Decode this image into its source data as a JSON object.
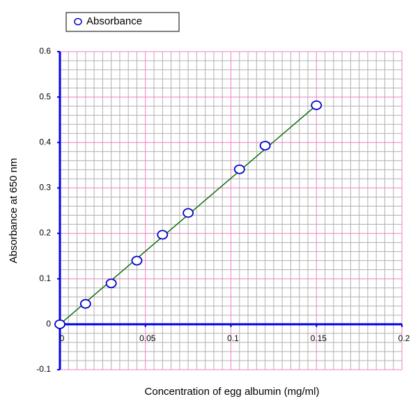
{
  "chart_data": {
    "type": "scatter",
    "x_label": "Concentration of egg albumin (mg/ml)",
    "y_label": "Absorbance at 650 nm",
    "series": [
      {
        "name": "Absorbance",
        "color": "#0000cc",
        "x": [
          0,
          0.015,
          0.03,
          0.045,
          0.06,
          0.075,
          0.105,
          0.12,
          0.15
        ],
        "values": [
          0,
          0.045,
          0.09,
          0.14,
          0.197,
          0.245,
          0.341,
          0.393,
          0.482
        ]
      }
    ],
    "trendline": {
      "color": "#107010",
      "x": [
        0,
        0.15
      ],
      "values": [
        0,
        0.482
      ]
    },
    "xlim": [
      0,
      0.2
    ],
    "xticks": [
      0,
      0.05,
      0.1,
      0.15,
      0.2
    ],
    "ylim": [
      -0.1,
      0.6
    ],
    "yticks": [
      -0.1,
      0,
      0.1,
      0.2,
      0.3,
      0.4,
      0.5,
      0.6
    ],
    "grid": true,
    "legend": "top-left"
  }
}
